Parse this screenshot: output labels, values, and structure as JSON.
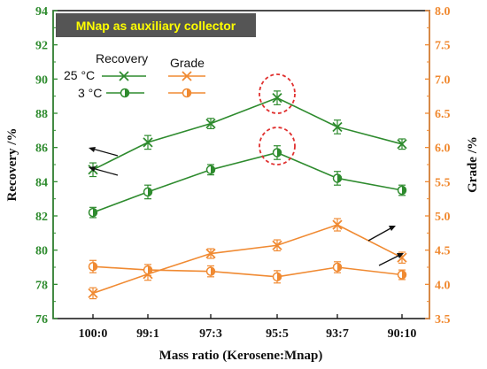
{
  "chart_data": {
    "type": "line",
    "title": "MNap as auxiliary collector",
    "xlabel": "Mass ratio (Kerosene:Mnap)",
    "ylabel_left": "Recovery /%",
    "ylabel_right": "Grade /%",
    "categories": [
      "100:0",
      "99:1",
      "97:3",
      "95:5",
      "93:7",
      "90:10"
    ],
    "ylim_left": [
      76,
      94
    ],
    "ylim_right": [
      3.5,
      8.0
    ],
    "left_ticks": [
      "76",
      "78",
      "80",
      "82",
      "84",
      "86",
      "88",
      "90",
      "92",
      "94"
    ],
    "right_ticks": [
      "3.5",
      "4.0",
      "4.5",
      "5.0",
      "5.5",
      "6.0",
      "6.5",
      "7.0",
      "7.5",
      "8.0"
    ],
    "legend": {
      "header_recovery": "Recovery",
      "header_grade": "Grade",
      "row1_label": "25 °C",
      "row2_label": "3 °C"
    },
    "series": [
      {
        "name": "25 °C",
        "metric": "Recovery",
        "axis": "left",
        "color": "#2e8b2e",
        "marker": "x",
        "values": [
          84.7,
          86.3,
          87.4,
          88.9,
          87.2,
          86.2
        ],
        "err": [
          0.4,
          0.4,
          0.3,
          0.4,
          0.4,
          0.3
        ]
      },
      {
        "name": "3 °C",
        "metric": "Recovery",
        "axis": "left",
        "color": "#2e8b2e",
        "marker": "half-circle",
        "values": [
          82.2,
          83.4,
          84.7,
          85.7,
          84.2,
          83.5
        ],
        "err": [
          0.3,
          0.4,
          0.3,
          0.4,
          0.4,
          0.3
        ]
      },
      {
        "name": "25 °C",
        "metric": "Grade",
        "axis": "right",
        "color": "#f08a32",
        "marker": "x",
        "values": [
          3.87,
          4.15,
          4.45,
          4.57,
          4.87,
          4.39
        ],
        "err": [
          0.08,
          0.09,
          0.07,
          0.08,
          0.09,
          0.08
        ]
      },
      {
        "name": "3 °C",
        "metric": "Grade",
        "axis": "right",
        "color": "#f08a32",
        "marker": "half-circle",
        "values": [
          4.26,
          4.21,
          4.19,
          4.11,
          4.25,
          4.14
        ],
        "err": [
          0.09,
          0.08,
          0.08,
          0.09,
          0.08,
          0.07
        ]
      }
    ],
    "annotations": [
      "dashed red ellipse around 95:5 points of both recovery curves",
      "arrows pointing from curves toward their axes"
    ],
    "grid": false,
    "legend_placement": "top-left",
    "colors": {
      "recovery": "#2e8b2e",
      "grade": "#f08a32",
      "title_bg": "#555555",
      "title_text": "#ffff00",
      "highlight": "#e0302f"
    }
  }
}
